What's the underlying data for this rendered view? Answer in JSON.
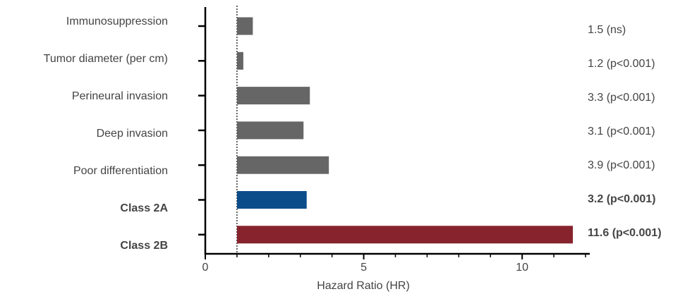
{
  "chart_data": {
    "type": "hbar",
    "x_label": "Hazard Ratio (HR)",
    "categories": [
      "Immunosuppression",
      "Tumor diameter (per cm)",
      "Perineural invasion",
      "Deep invasion",
      "Poor differentiation",
      "Class 2A",
      "Class 2B"
    ],
    "values": [
      1.5,
      1.2,
      3.3,
      3.1,
      3.9,
      3.2,
      11.6
    ],
    "value_labels": [
      "1.5 (ns)",
      "1.2 (p<0.001)",
      "3.3 (p<0.001)",
      "3.1 (p<0.001)",
      "3.9 (p<0.001)",
      "3.2 (p<0.001)",
      "11.6 (p<0.001)"
    ],
    "colors": [
      "#666666",
      "#666666",
      "#666666",
      "#666666",
      "#666666",
      "#0b4d8a",
      "#86232c"
    ],
    "emphasis": [
      false,
      false,
      false,
      false,
      false,
      true,
      true
    ],
    "reference_line": 1,
    "xlim": [
      0,
      12
    ],
    "xticks": [
      0,
      5,
      10
    ],
    "xminorticks": [
      1,
      2,
      3,
      4,
      6,
      7,
      8,
      9,
      11,
      12
    ]
  }
}
